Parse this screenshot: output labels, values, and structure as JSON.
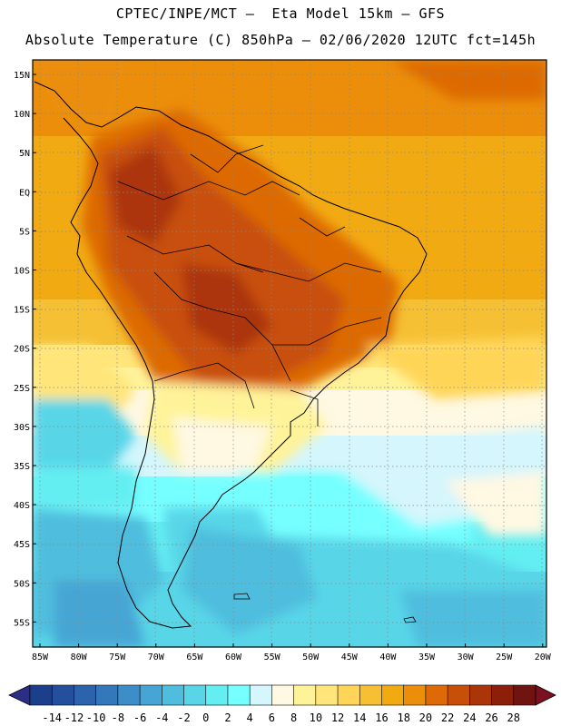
{
  "title_line1": "CPTEC/INPE/MCT –  Eta Model 15km – GFS",
  "title_line2": "Absolute Temperature (C) 850hPa – 02/06/2020 12UTC fct=145h",
  "lat_labels": [
    "15N",
    "10N",
    "5N",
    "EQ",
    "5S",
    "10S",
    "15S",
    "20S",
    "25S",
    "30S",
    "35S",
    "40S",
    "45S",
    "50S",
    "55S"
  ],
  "lon_labels": [
    "85W",
    "80W",
    "75W",
    "70W",
    "65W",
    "60W",
    "55W",
    "50W",
    "45W",
    "40W",
    "35W",
    "30W",
    "25W",
    "20W"
  ],
  "colorbar": {
    "ticks": [
      "-14",
      "-12",
      "-10",
      "-8",
      "-6",
      "-4",
      "-2",
      "0",
      "2",
      "4",
      "6",
      "8",
      "10",
      "12",
      "14",
      "16",
      "18",
      "20",
      "22",
      "24",
      "26",
      "28"
    ],
    "colors": [
      "#1c3f8c",
      "#234f9d",
      "#2c63ad",
      "#3478bc",
      "#3d8ec8",
      "#46a5d4",
      "#4fbede",
      "#58d6e8",
      "#63eef2",
      "#76ffff",
      "#d4f6fc",
      "#fff8e2",
      "#fff39a",
      "#ffe57a",
      "#ffd559",
      "#f5c033",
      "#f2aa12",
      "#ec8e0a",
      "#dd6a06",
      "#c84f08",
      "#ac3508",
      "#8c1f0a",
      "#6f1410"
    ],
    "left_arrow_color": "#2b2d87",
    "right_arrow_color": "#7b1020"
  }
}
